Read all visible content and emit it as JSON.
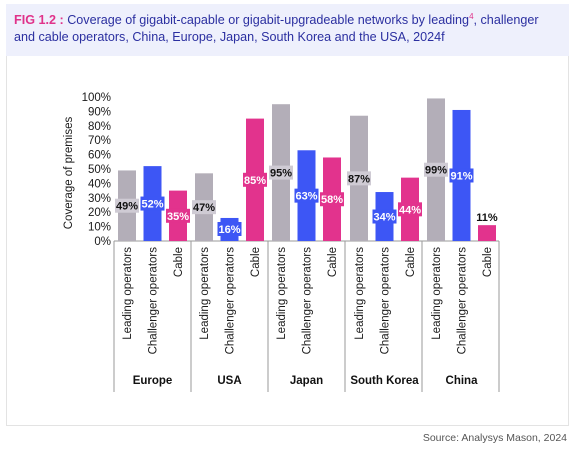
{
  "header": {
    "fig_label": "FIG 1.2 :",
    "title_part1": "Coverage of gigabit-capable or gigabit-upgradeable networks by leading",
    "title_sup": "4",
    "title_part2": ", challenger and cable operators, China, Europe, Japan, South Korea and the USA, 2024f"
  },
  "source": "Source: Analysys Mason, 2024",
  "colors": {
    "Leading operators": "#b3aeb8",
    "Challenger operators": "#3d56f5",
    "Cable": "#e2338d",
    "grid": "#bfbfbf",
    "label_bg_light": "#cfcbd4"
  },
  "chart_data": {
    "type": "bar",
    "title": "",
    "xlabel": "",
    "ylabel": "Coverage of premises",
    "ylim": [
      0,
      100
    ],
    "yticks": [
      "0%",
      "10%",
      "20%",
      "30%",
      "40%",
      "50%",
      "60%",
      "70%",
      "80%",
      "90%",
      "100%"
    ],
    "grid": false,
    "legend": "none",
    "groups": [
      {
        "name": "Europe",
        "bars": [
          {
            "series": "Leading operators",
            "value": 49,
            "label": "49%"
          },
          {
            "series": "Challenger operators",
            "value": 52,
            "label": "52%"
          },
          {
            "series": "Cable",
            "value": 35,
            "label": "35%"
          }
        ]
      },
      {
        "name": "USA",
        "bars": [
          {
            "series": "Leading operators",
            "value": 47,
            "label": "47%"
          },
          {
            "series": "Challenger operators",
            "value": 16,
            "label": "16%"
          },
          {
            "series": "Cable",
            "value": 85,
            "label": "85%"
          }
        ]
      },
      {
        "name": "Japan",
        "bars": [
          {
            "series": "Leading operators",
            "value": 95,
            "label": "95%"
          },
          {
            "series": "Challenger operators",
            "value": 63,
            "label": "63%"
          },
          {
            "series": "Cable",
            "value": 58,
            "label": "58%"
          }
        ]
      },
      {
        "name": "South Korea",
        "bars": [
          {
            "series": "Leading operators",
            "value": 87,
            "label": "87%"
          },
          {
            "series": "Challenger operators",
            "value": 34,
            "label": "34%"
          },
          {
            "series": "Cable",
            "value": 44,
            "label": "44%"
          }
        ]
      },
      {
        "name": "China",
        "bars": [
          {
            "series": "Leading operators",
            "value": 99,
            "label": "99%"
          },
          {
            "series": "Challenger operators",
            "value": 91,
            "label": "91%"
          },
          {
            "series": "Cable",
            "value": 11,
            "label": "11%"
          }
        ]
      }
    ]
  }
}
